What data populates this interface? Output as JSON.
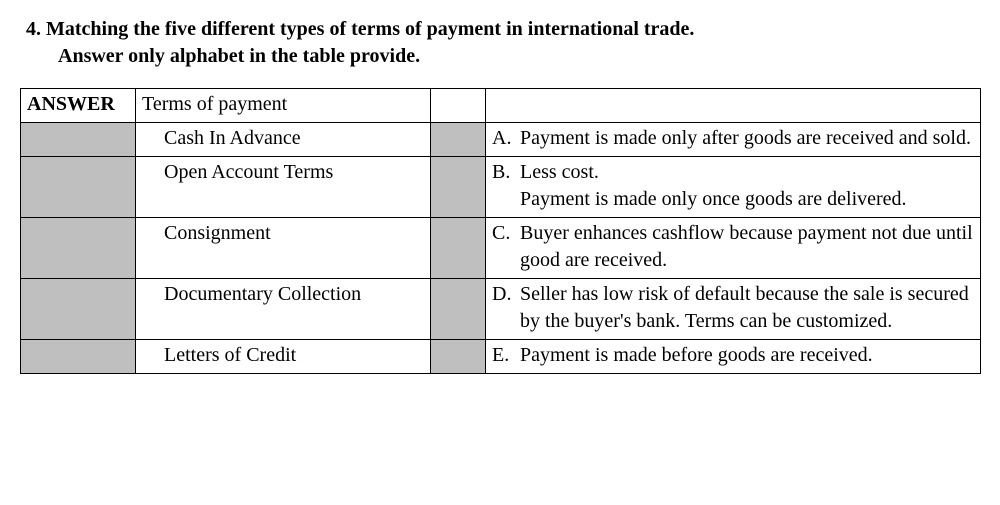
{
  "heading": {
    "line1": "4. Matching the five different types of terms of payment in international trade.",
    "line2": "Answer only alphabet in the table provide."
  },
  "headers": {
    "answer": "ANSWER",
    "terms": "Terms of payment"
  },
  "rows": [
    {
      "term": "Cash In Advance",
      "letter": "A.",
      "desc": "Payment is made only after goods are received and sold."
    },
    {
      "term": "Open Account Terms",
      "letter": "B.",
      "desc": "Less cost.\nPayment is made only once goods are delivered."
    },
    {
      "term": "Consignment",
      "letter": "C.",
      "desc": "Buyer enhances cashflow because payment not due until good are received."
    },
    {
      "term": "Documentary Collection",
      "letter": "D.",
      "desc": "Seller has low risk of default because the sale is secured by the buyer's bank. Terms can be customized."
    },
    {
      "term": "Letters of Credit",
      "letter": "E.",
      "desc": "Payment is made before goods are received."
    }
  ]
}
